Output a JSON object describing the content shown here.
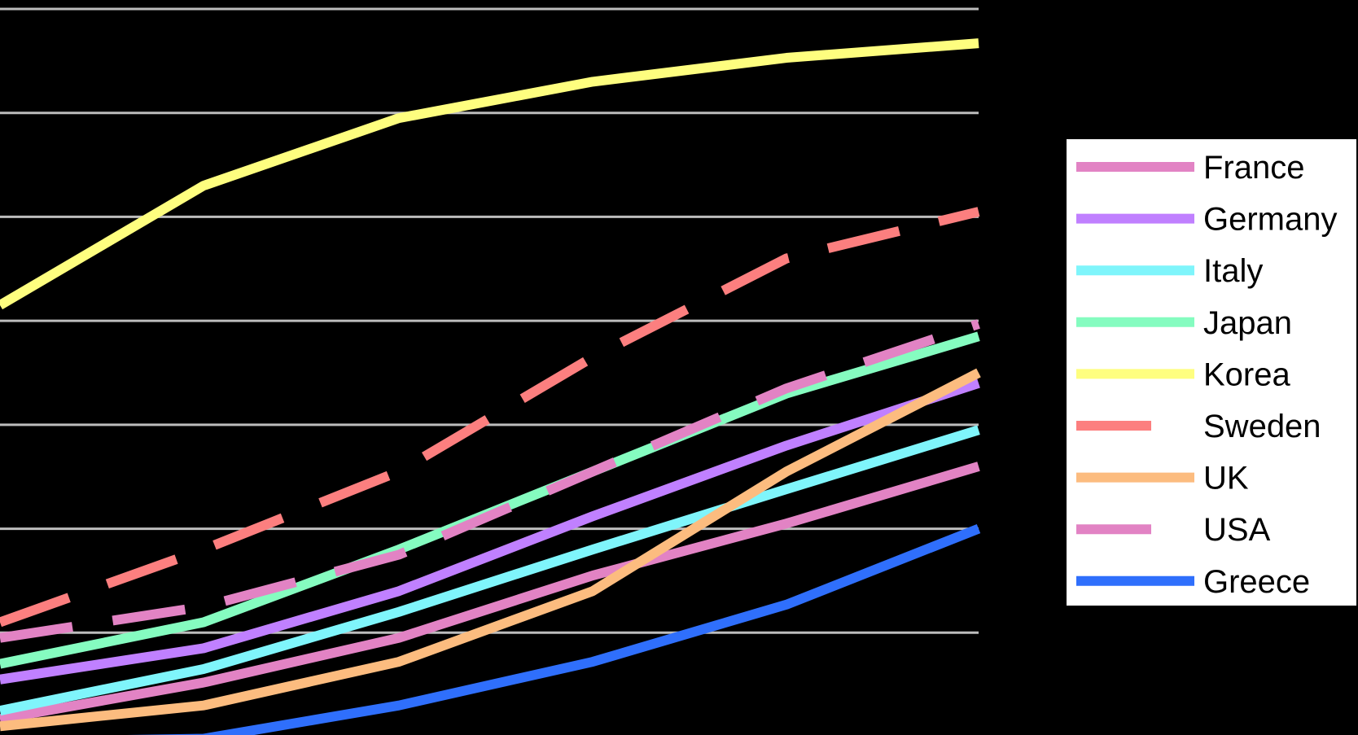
{
  "chart_data": {
    "type": "line",
    "x": [
      0,
      1,
      2,
      3,
      4,
      5
    ],
    "ylim": [
      0,
      7
    ],
    "grid": true,
    "legend_position": "right",
    "series": [
      {
        "name": "France",
        "color": "#e283c4",
        "dash": false,
        "values": [
          0.17,
          0.52,
          0.95,
          1.55,
          2.05,
          2.6
        ]
      },
      {
        "name": "Germany",
        "color": "#c080ff",
        "dash": false,
        "values": [
          0.55,
          0.85,
          1.4,
          2.12,
          2.8,
          3.4
        ]
      },
      {
        "name": "Italy",
        "color": "#7ff5fb",
        "dash": false,
        "values": [
          0.25,
          0.65,
          1.2,
          1.8,
          2.38,
          2.95
        ]
      },
      {
        "name": "Japan",
        "color": "#85fcc0",
        "dash": false,
        "values": [
          0.7,
          1.1,
          1.8,
          2.55,
          3.3,
          3.85
        ]
      },
      {
        "name": "Korea",
        "color": "#fefe7f",
        "dash": false,
        "values": [
          4.15,
          5.3,
          5.95,
          6.3,
          6.53,
          6.67
        ]
      },
      {
        "name": "Sweden",
        "color": "#fc7f7f",
        "dash": true,
        "values": [
          1.1,
          1.8,
          2.55,
          3.65,
          4.6,
          5.05
        ]
      },
      {
        "name": "UK",
        "color": "#fcbc7f",
        "dash": false,
        "values": [
          0.1,
          0.3,
          0.72,
          1.4,
          2.55,
          3.5
        ]
      },
      {
        "name": "USA",
        "color": "#e283c4",
        "dash": true,
        "values": [
          0.95,
          1.25,
          1.75,
          2.55,
          3.35,
          3.97
        ]
      },
      {
        "name": "Greece",
        "color": "#2f6ffc",
        "dash": false,
        "values": [
          -0.05,
          -0.02,
          0.3,
          0.72,
          1.27,
          2.0
        ]
      }
    ]
  }
}
